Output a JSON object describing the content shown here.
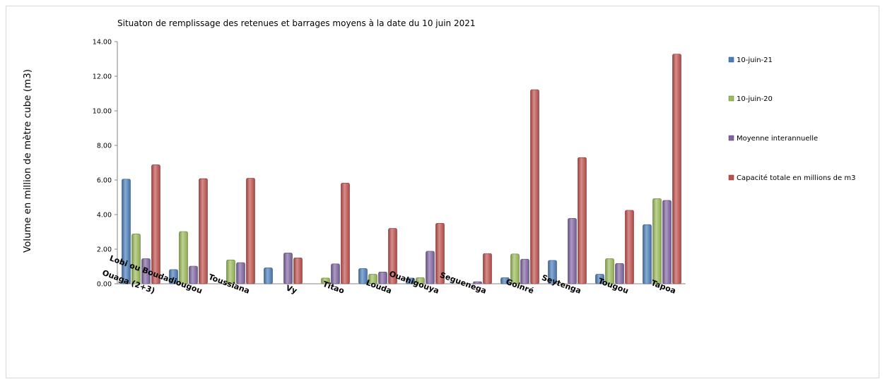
{
  "chart_data": {
    "type": "bar",
    "title": "Situaton de remplissage des retenues et barrages moyens à la date du 10 juin 2021",
    "xlabel": "",
    "ylabel": "Volume en million de mètre cube (m3)",
    "ylim": [
      0,
      14
    ],
    "yticks": [
      "0.00",
      "2.00",
      "4.00",
      "6.00",
      "8.00",
      "10.00",
      "12.00",
      "14.00"
    ],
    "grid": false,
    "legend_position": "right",
    "categories": [
      "Ouaga (2+3)",
      "Lobi ou Boudadiougou",
      "Toussiana",
      "Vy",
      "Titao",
      "Louda",
      "Ouahigouya",
      "Seguenega",
      "Goinré",
      "Seytenga",
      "Tougou",
      "Tapoa"
    ],
    "series": [
      {
        "name": "10-juin-21",
        "color": "#4a7ebb",
        "values": [
          6.05,
          0.82,
          0,
          0.92,
          0,
          0.88,
          0.33,
          0,
          0.35,
          1.35,
          0.55,
          3.42
        ]
      },
      {
        "name": "10-juin-20",
        "color": "#9bbb59",
        "values": [
          2.88,
          3.02,
          1.38,
          0,
          0.33,
          0.55,
          0.35,
          0,
          1.72,
          0,
          1.45,
          4.92
        ]
      },
      {
        "name": "Moyenne interannuelle",
        "color": "#8064a2",
        "values": [
          1.45,
          1.02,
          1.22,
          1.78,
          1.15,
          0.68,
          1.88,
          0.12,
          1.42,
          3.78,
          1.17,
          4.82
        ]
      },
      {
        "name": "Capacité totale en millions de m3",
        "color": "#c0504d",
        "values": [
          6.88,
          6.08,
          6.1,
          1.5,
          5.82,
          3.2,
          3.5,
          1.75,
          11.22,
          7.3,
          4.25,
          13.28
        ]
      }
    ]
  }
}
